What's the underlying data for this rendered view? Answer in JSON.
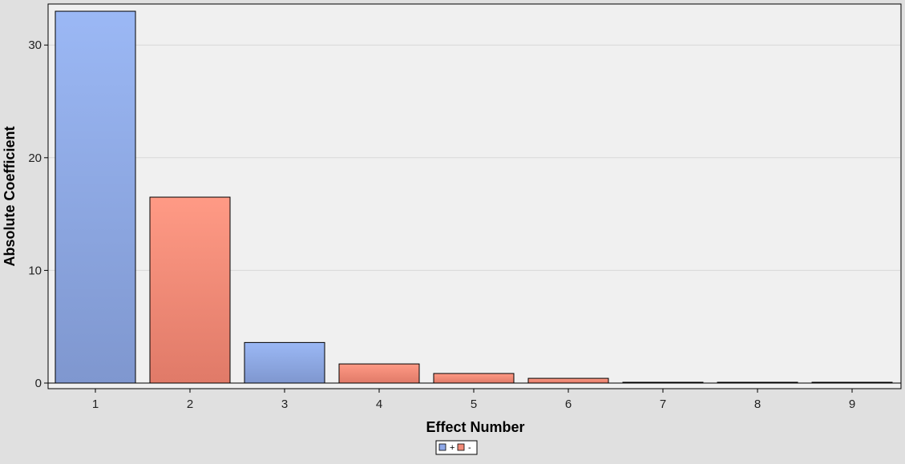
{
  "chart_data": {
    "type": "bar",
    "categories": [
      "1",
      "2",
      "3",
      "4",
      "5",
      "6",
      "7",
      "8",
      "9"
    ],
    "values": [
      33.0,
      16.5,
      3.6,
      1.7,
      0.85,
      0.42,
      0.05,
      0.05,
      0.05
    ],
    "signs": [
      "+",
      "-",
      "+",
      "-",
      "-",
      "-",
      "+",
      "+",
      "+"
    ],
    "xlabel": "Effect Number",
    "ylabel": "Absolute Coefficient",
    "ylim": [
      0,
      33.5
    ],
    "yticks": [
      "0",
      "10",
      "20",
      "30"
    ],
    "grid": true,
    "legend": {
      "placement": "bottom-center",
      "entries": [
        {
          "label": "+",
          "color": "#8fa8e8"
        },
        {
          "label": "-",
          "color": "#f28b78"
        }
      ]
    },
    "colors": {
      "positive_top": "#9bb8f5",
      "positive_bottom": "#7f97cf",
      "negative_top": "#ff9a85",
      "negative_bottom": "#e07a68",
      "plot_background": "#f0f0f0",
      "page_background": "#e0e0e0"
    }
  }
}
